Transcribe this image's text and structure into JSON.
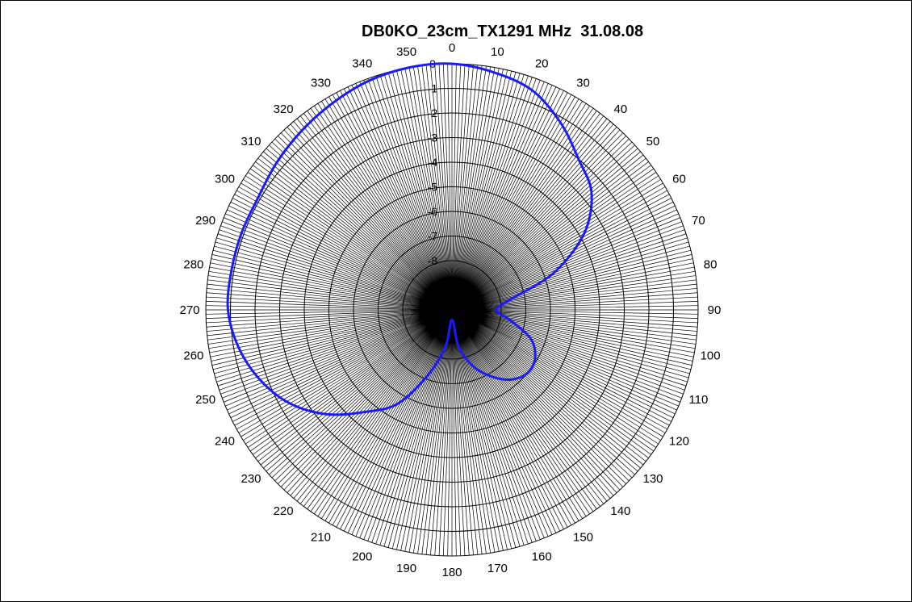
{
  "chart_data": {
    "type": "polar_line",
    "title": "DB0KO_23cm_TX1291 MHz  31.08.08",
    "angle_ticks": [
      "0",
      "10",
      "20",
      "30",
      "40",
      "50",
      "60",
      "70",
      "80",
      "90",
      "100",
      "110",
      "120",
      "130",
      "140",
      "150",
      "160",
      "170",
      "180",
      "190",
      "200",
      "210",
      "220",
      "230",
      "240",
      "250",
      "260",
      "270",
      "280",
      "290",
      "300",
      "310",
      "320",
      "330",
      "340",
      "350"
    ],
    "radial_ticks": [
      "0",
      "-1",
      "-2",
      "-3",
      "-4",
      "-5",
      "-6",
      "-7",
      "-8"
    ],
    "radial_range_db": [
      -10,
      0
    ],
    "radial_step_db": 1,
    "colors": {
      "trace": "#1a1aff",
      "grid": "#000000"
    },
    "series": [
      {
        "angles_deg": [
          0,
          10,
          20,
          30,
          40,
          50,
          60,
          70,
          80,
          90,
          100,
          110,
          120,
          130,
          140,
          150,
          160,
          170,
          180,
          190,
          200,
          210,
          220,
          230,
          240,
          250,
          260,
          270,
          280,
          290,
          300,
          310,
          320,
          330,
          340,
          350
        ],
        "values_db": [
          0,
          -0.2,
          -0.5,
          -1.2,
          -2.0,
          -2.6,
          -3.8,
          -5.6,
          -7.6,
          -8.2,
          -7.6,
          -6.6,
          -6.1,
          -6.0,
          -6.3,
          -6.9,
          -7.6,
          -8.5,
          -9.6,
          -8.5,
          -7.2,
          -5.6,
          -4.6,
          -3.4,
          -2.4,
          -1.7,
          -1.2,
          -0.9,
          -0.9,
          -0.9,
          -0.9,
          -0.7,
          -0.5,
          -0.3,
          -0.1,
          0
        ]
      }
    ]
  }
}
